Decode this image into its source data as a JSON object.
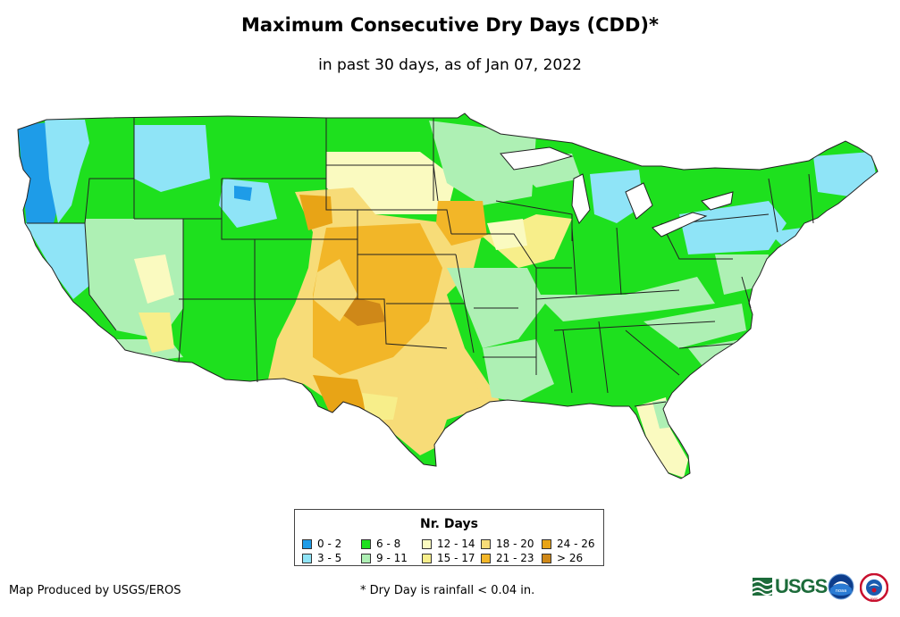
{
  "title": "Maximum Consecutive Dry Days (CDD)*",
  "subtitle": "in past 30 days, as of Jan 07, 2022",
  "legend": {
    "title": "Nr. Days",
    "classes": [
      {
        "label": "0 - 2",
        "color": "#1e9ce8"
      },
      {
        "label": "3 - 5",
        "color": "#8fe4f7"
      },
      {
        "label": "6 - 8",
        "color": "#1ee01e"
      },
      {
        "label": "9 - 11",
        "color": "#aef0b4"
      },
      {
        "label": "12 - 14",
        "color": "#fafac0"
      },
      {
        "label": "15 - 17",
        "color": "#f7ee8a"
      },
      {
        "label": "18 - 20",
        "color": "#f7dc78"
      },
      {
        "label": "21 - 23",
        "color": "#f2b628"
      },
      {
        "label": "24 - 26",
        "color": "#e8a416"
      },
      {
        "label": "> 26",
        "color": "#cf8818"
      }
    ]
  },
  "credit": "Map Produced by USGS/EROS",
  "footnote": "* Dry Day is rainfall < 0.04 in.",
  "logos": {
    "usgs": "USGS",
    "noaa": "noaa",
    "nws": "NWS"
  },
  "map_colors": {
    "water": "#ffffff",
    "border": "#222222"
  }
}
